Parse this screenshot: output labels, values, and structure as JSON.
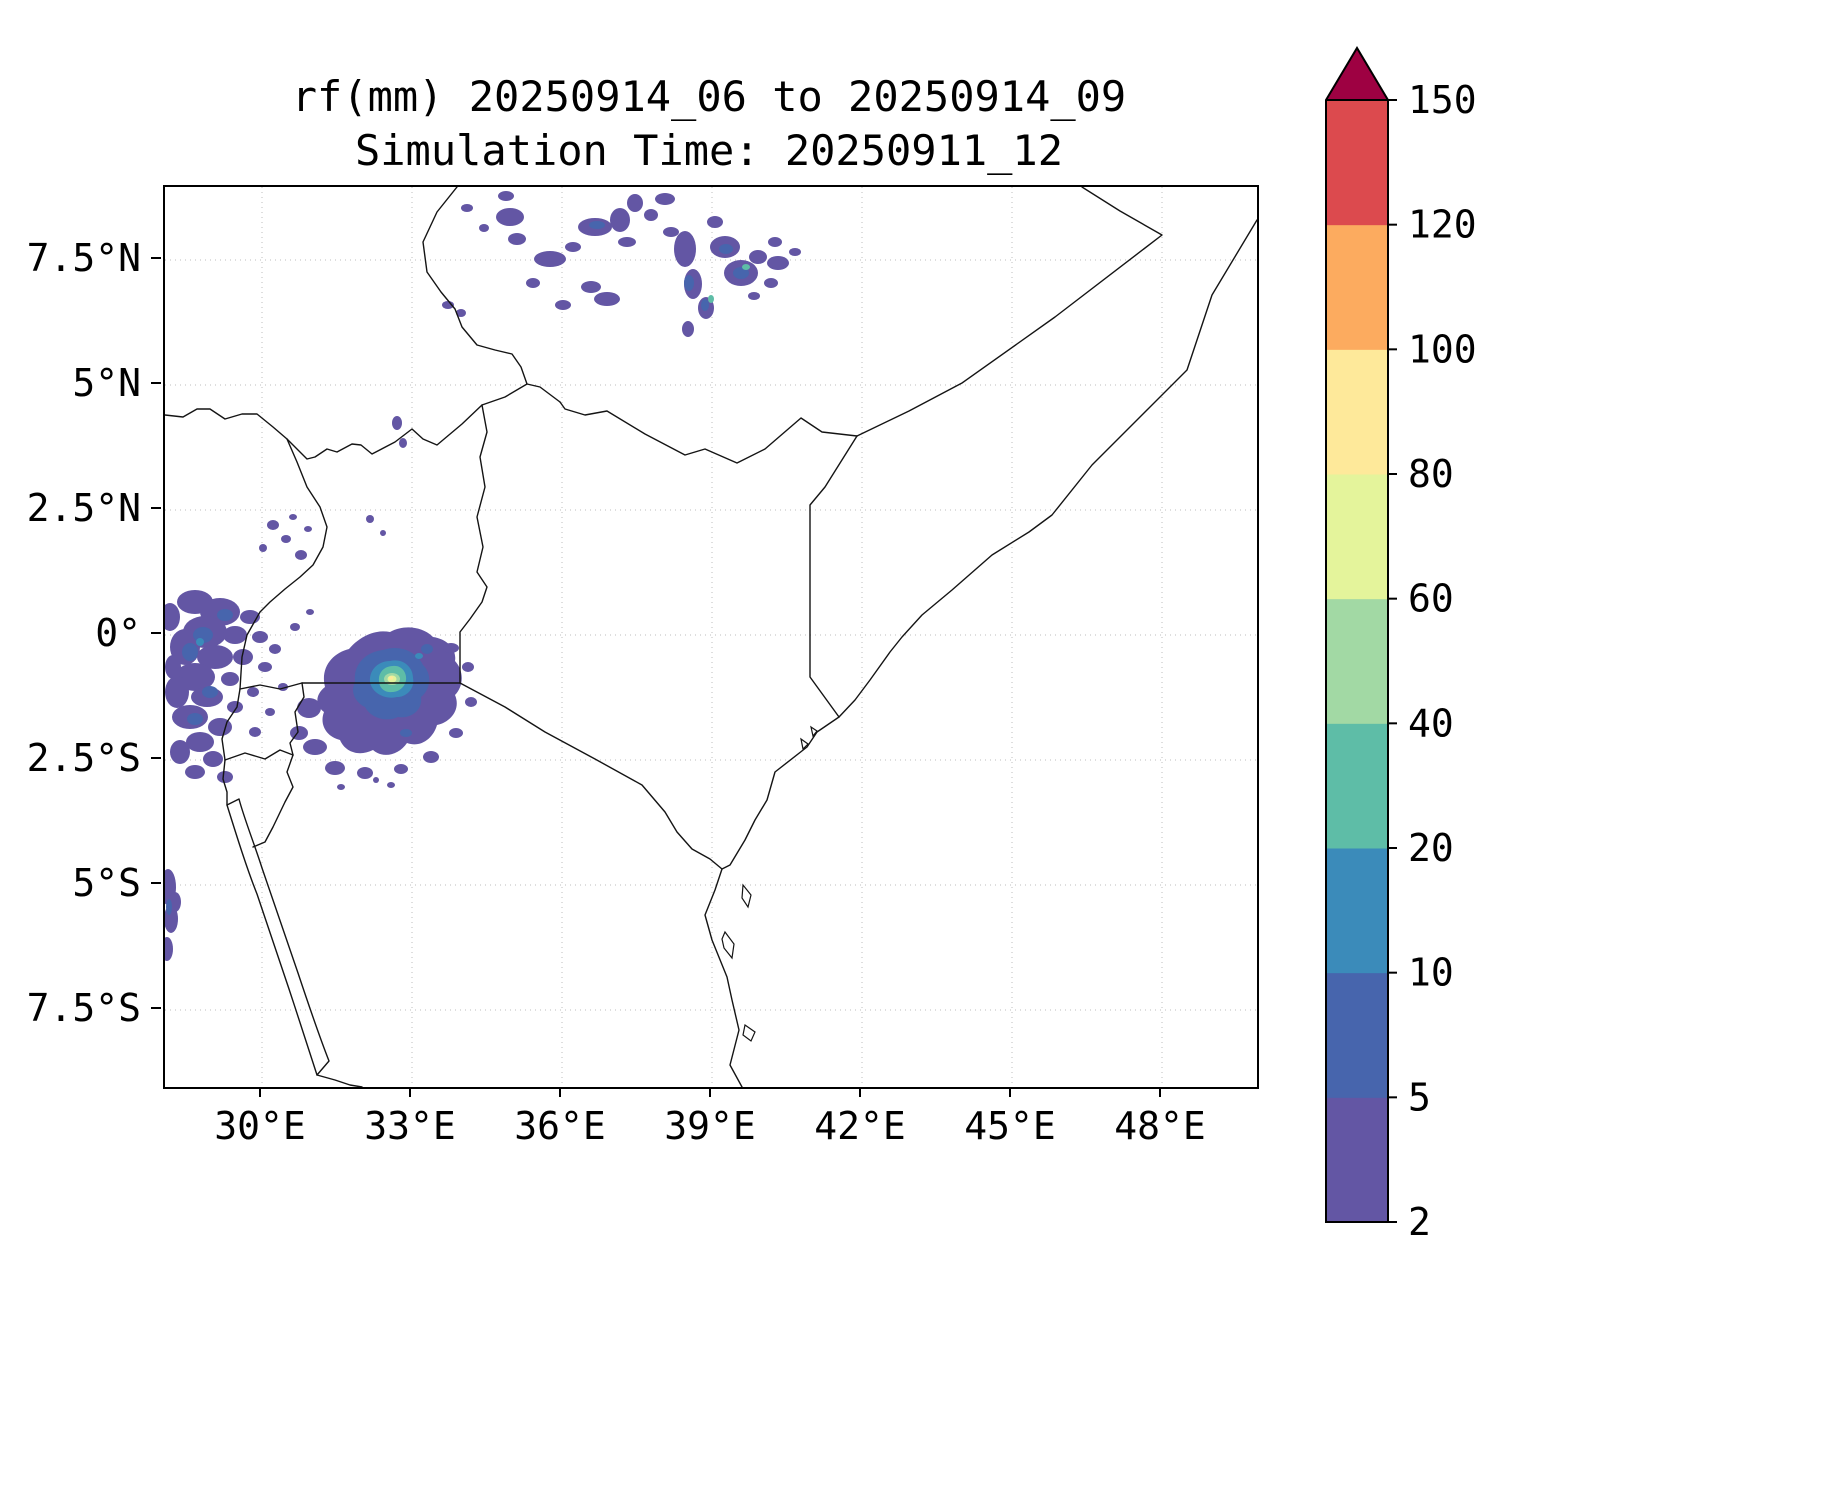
{
  "title": {
    "line1": "rf(mm) 20250914_06 to 20250914_09",
    "line2": "Simulation Time: 20250911_12"
  },
  "axes": {
    "x_ticks": [
      {
        "label": "30°E",
        "lon": 30
      },
      {
        "label": "33°E",
        "lon": 33
      },
      {
        "label": "36°E",
        "lon": 36
      },
      {
        "label": "39°E",
        "lon": 39
      },
      {
        "label": "42°E",
        "lon": 42
      },
      {
        "label": "45°E",
        "lon": 45
      },
      {
        "label": "48°E",
        "lon": 48
      }
    ],
    "y_ticks": [
      {
        "label": "7.5°N",
        "lat": 7.5
      },
      {
        "label": "5°N",
        "lat": 5
      },
      {
        "label": "2.5°N",
        "lat": 2.5
      },
      {
        "label": "0°",
        "lat": 0
      },
      {
        "label": "2.5°S",
        "lat": -2.5
      },
      {
        "label": "5°S",
        "lat": -5
      },
      {
        "label": "7.5°S",
        "lat": -7.5
      }
    ]
  },
  "colorbar": {
    "boundaries": [
      2,
      5,
      10,
      20,
      40,
      60,
      80,
      100,
      120,
      150
    ],
    "tick_labels": [
      "2",
      "5",
      "10",
      "20",
      "40",
      "60",
      "80",
      "100",
      "120",
      "150"
    ],
    "colors": [
      "#6356a4",
      "#4765ad",
      "#3b8bba",
      "#5ebda7",
      "#a2d9a4",
      "#e4f49b",
      "#fee99a",
      "#fcab5f",
      "#dc4a4e"
    ],
    "over_color": "#9e0142",
    "outline_color": "#000000"
  },
  "chart_data": {
    "type": "heatmap",
    "variable": "rf",
    "units": "mm",
    "title": "rf(mm) 20250914_06 to 20250914_09",
    "subtitle": "Simulation Time: 20250911_12",
    "valid_period": {
      "start": "20250914_06",
      "end": "20250914_09"
    },
    "simulation_time": "20250911_12",
    "map_extent": {
      "lon_min": 28.1,
      "lon_max": 49.9,
      "lat_min": -9.0,
      "lat_max": 9.0
    },
    "x_tick_labels": [
      "30°E",
      "33°E",
      "36°E",
      "39°E",
      "42°E",
      "45°E",
      "48°E"
    ],
    "y_tick_labels": [
      "7.5°N",
      "5°N",
      "2.5°N",
      "0°",
      "2.5°S",
      "5°S",
      "7.5°S"
    ],
    "contour_levels_mm": [
      2,
      5,
      10,
      20,
      40,
      60,
      80,
      100,
      120,
      150
    ],
    "palette": "Spectral_r",
    "grid": true,
    "legend_position": "right-colorbar",
    "features": [
      {
        "name": "intense-convective-cell",
        "center_lon": 32.4,
        "center_lat": -1.2,
        "max_mm": 90,
        "note": "nested contours 2 to 80+ mm just northwest of Lake Victoria"
      },
      {
        "name": "scattered-showers-ethiopian-highlands",
        "lon_range": [
          33.5,
          40.8
        ],
        "lat_range": [
          5.5,
          9.0
        ],
        "max_mm": 25
      },
      {
        "name": "patchy-rain-albertine-rift",
        "lon_range": [
          28.0,
          31.3
        ],
        "lat_range": [
          -3.0,
          1.2
        ],
        "max_mm": 12
      },
      {
        "name": "light-rain-west-edge-south",
        "lon_range": [
          28.0,
          28.6
        ],
        "lat_range": [
          -6.8,
          -4.7
        ],
        "max_mm": 6
      }
    ]
  }
}
